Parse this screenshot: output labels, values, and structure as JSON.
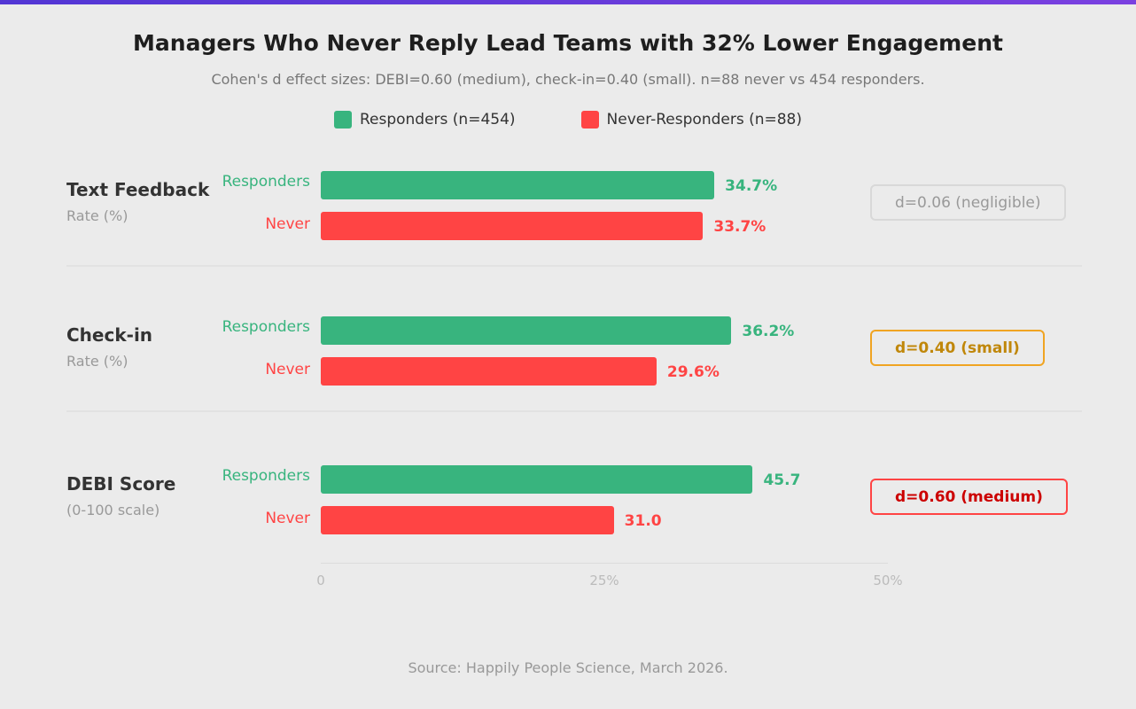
{
  "title": "Managers Who Never Reply Lead Teams with 32% Lower Engagement",
  "subtitle": "Cohen's d effect sizes: DEBI=0.60 (medium), check-in=0.40 (small). n=88 never vs 454 responders.",
  "legend": [
    {
      "label": "Responders (n=454)",
      "color": "#38b47e"
    },
    {
      "label": "Never-Responders (n=88)",
      "color": "#ff4444"
    }
  ],
  "source": "Source: Happily People Science, March 2026.",
  "chart_data": {
    "type": "bar",
    "orientation": "horizontal",
    "axis_ticks": [
      "0",
      "25%",
      "50%"
    ],
    "xlim": [
      0,
      50
    ],
    "groups": [
      {
        "name": "Text Feedback",
        "sub": "Rate (%)",
        "scale_max": 50,
        "bars": [
          {
            "label": "Responders",
            "value": 34.7,
            "text": "34.7%"
          },
          {
            "label": "Never",
            "value": 33.7,
            "text": "33.7%"
          }
        ],
        "effect": "d=0.06 (negligible)",
        "effect_color": "#999999",
        "effect_border": "#d8d8d8"
      },
      {
        "name": "Check-in",
        "sub": "Rate (%)",
        "scale_max": 50,
        "bars": [
          {
            "label": "Responders",
            "value": 36.2,
            "text": "36.2%"
          },
          {
            "label": "Never",
            "value": 29.6,
            "text": "29.6%"
          }
        ],
        "effect": "d=0.40 (small)",
        "effect_color": "#c0870a",
        "effect_border": "#f0a422"
      },
      {
        "name": "DEBI Score",
        "sub": "(0-100 scale)",
        "scale_max": 60,
        "bars": [
          {
            "label": "Responders",
            "value": 45.7,
            "text": "45.7"
          },
          {
            "label": "Never",
            "value": 31.0,
            "text": "31.0"
          }
        ],
        "effect": "d=0.60 (medium)",
        "effect_color": "#cc0000",
        "effect_border": "#ff4444"
      }
    ]
  }
}
